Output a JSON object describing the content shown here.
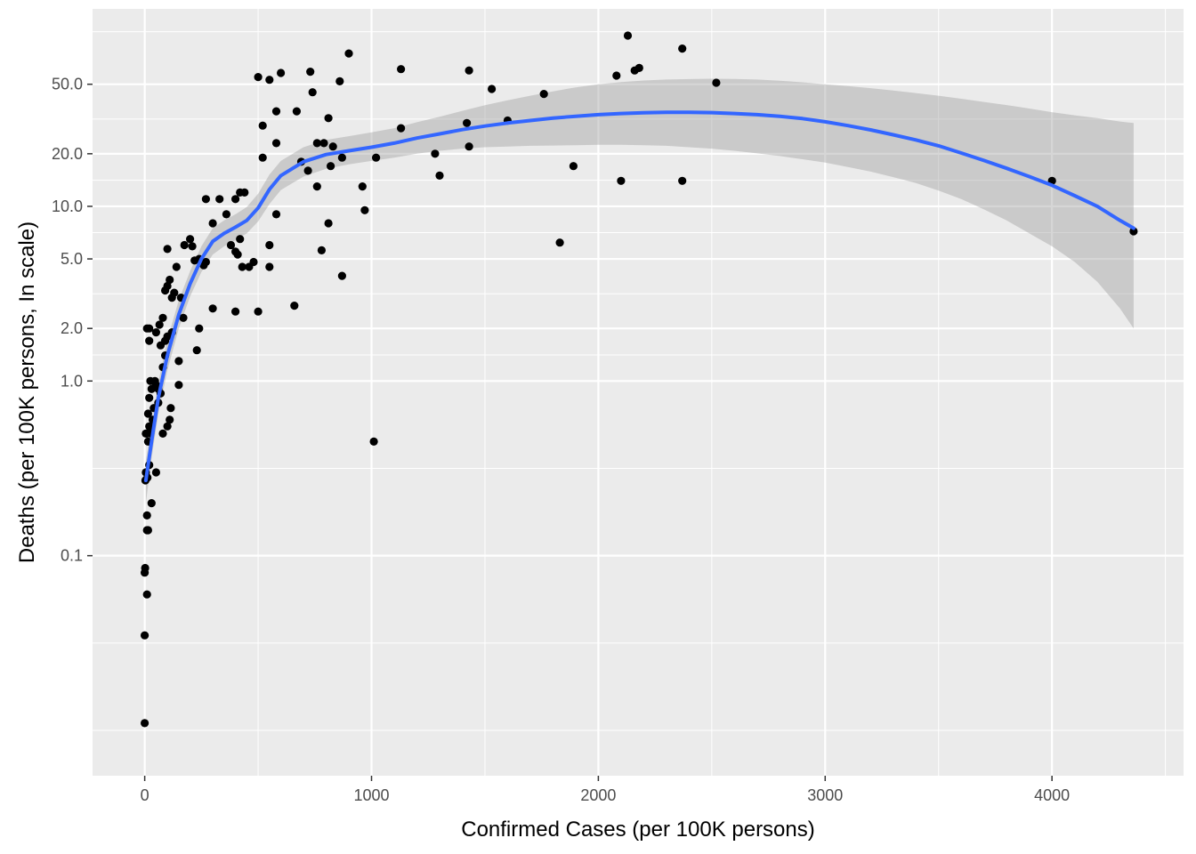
{
  "chart_data": {
    "type": "scatter",
    "title": "",
    "xlabel": "Confirmed Cases (per 100K persons)",
    "ylabel": "Deaths (per 100K persons, In scale)",
    "x_scale": "linear",
    "y_scale": "log",
    "xlim": [
      -230,
      4580
    ],
    "ylim": [
      0.0055,
      135
    ],
    "x_ticks": [
      {
        "value": 0,
        "label": "0"
      },
      {
        "value": 1000,
        "label": "1000"
      },
      {
        "value": 2000,
        "label": "2000"
      },
      {
        "value": 3000,
        "label": "3000"
      },
      {
        "value": 4000,
        "label": "4000"
      }
    ],
    "x_minor_ticks": [
      500,
      1500,
      2500,
      3500,
      4500
    ],
    "y_ticks": [
      {
        "value": 0.1,
        "label": "0.1"
      },
      {
        "value": 1,
        "label": "1.0"
      },
      {
        "value": 2,
        "label": "2.0"
      },
      {
        "value": 5,
        "label": "5.0"
      },
      {
        "value": 10,
        "label": "10.0"
      },
      {
        "value": 20,
        "label": "20.0"
      },
      {
        "value": 50,
        "label": "50.0"
      }
    ],
    "y_minor_ticks": [
      0.01,
      0.0316,
      0.316,
      1.41,
      3.16,
      7.07,
      14.1,
      31.6,
      100
    ],
    "grid": true,
    "legend": "none",
    "colors": {
      "panel": "#ebebeb",
      "grid": "#ffffff",
      "points": "#000000",
      "smooth_line": "#3366ff",
      "ribbon": "#999999"
    },
    "points": [
      [
        0,
        0.011
      ],
      [
        0,
        0.035
      ],
      [
        0,
        0.08
      ],
      [
        2,
        0.085
      ],
      [
        10,
        0.06
      ],
      [
        10,
        0.14
      ],
      [
        15,
        0.14
      ],
      [
        10,
        0.17
      ],
      [
        30,
        0.2
      ],
      [
        3,
        0.27
      ],
      [
        5,
        0.3
      ],
      [
        12,
        0.28
      ],
      [
        50,
        0.3
      ],
      [
        20,
        0.33
      ],
      [
        15,
        0.45
      ],
      [
        5,
        0.5
      ],
      [
        10,
        0.5
      ],
      [
        20,
        0.55
      ],
      [
        25,
        0.5
      ],
      [
        35,
        0.6
      ],
      [
        40,
        0.7
      ],
      [
        20,
        0.8
      ],
      [
        30,
        0.9
      ],
      [
        50,
        0.95
      ],
      [
        60,
        0.9
      ],
      [
        45,
        1.0
      ],
      [
        25,
        1.0
      ],
      [
        15,
        0.65
      ],
      [
        60,
        0.75
      ],
      [
        80,
        0.5
      ],
      [
        100,
        0.55
      ],
      [
        110,
        0.6
      ],
      [
        115,
        0.7
      ],
      [
        150,
        0.95
      ],
      [
        70,
        0.85
      ],
      [
        80,
        1.2
      ],
      [
        90,
        1.4
      ],
      [
        70,
        1.6
      ],
      [
        90,
        1.7
      ],
      [
        100,
        1.8
      ],
      [
        120,
        1.9
      ],
      [
        150,
        1.3
      ],
      [
        80,
        2.3
      ],
      [
        65,
        2.1
      ],
      [
        50,
        1.9
      ],
      [
        20,
        1.7
      ],
      [
        10,
        2.0
      ],
      [
        20,
        2.0
      ],
      [
        90,
        3.3
      ],
      [
        100,
        3.5
      ],
      [
        110,
        3.8
      ],
      [
        120,
        3.0
      ],
      [
        130,
        3.2
      ],
      [
        140,
        4.5
      ],
      [
        160,
        3.0
      ],
      [
        170,
        2.3
      ],
      [
        100,
        5.7
      ],
      [
        175,
        6.0
      ],
      [
        200,
        6.5
      ],
      [
        210,
        5.9
      ],
      [
        220,
        4.9
      ],
      [
        240,
        5.0
      ],
      [
        260,
        4.6
      ],
      [
        270,
        4.8
      ],
      [
        270,
        11.0
      ],
      [
        300,
        8.0
      ],
      [
        330,
        11.0
      ],
      [
        360,
        9.0
      ],
      [
        380,
        6.0
      ],
      [
        400,
        5.5
      ],
      [
        410,
        5.3
      ],
      [
        420,
        6.5
      ],
      [
        400,
        11.0
      ],
      [
        420,
        12.0
      ],
      [
        440,
        12.0
      ],
      [
        430,
        4.5
      ],
      [
        460,
        4.5
      ],
      [
        230,
        1.5
      ],
      [
        240,
        2.0
      ],
      [
        300,
        2.6
      ],
      [
        400,
        2.5
      ],
      [
        500,
        2.5
      ],
      [
        660,
        2.7
      ],
      [
        480,
        4.8
      ],
      [
        550,
        4.5
      ],
      [
        550,
        6.0
      ],
      [
        580,
        9.0
      ],
      [
        780,
        5.6
      ],
      [
        810,
        8.0
      ],
      [
        870,
        4.0
      ],
      [
        970,
        9.5
      ],
      [
        960,
        13.0
      ],
      [
        1010,
        0.45
      ],
      [
        1020,
        19.0
      ],
      [
        760,
        13.0
      ],
      [
        690,
        18.0
      ],
      [
        720,
        16.0
      ],
      [
        760,
        23.0
      ],
      [
        790,
        23.0
      ],
      [
        820,
        17.0
      ],
      [
        830,
        22.0
      ],
      [
        870,
        19.0
      ],
      [
        520,
        19.0
      ],
      [
        520,
        29.0
      ],
      [
        580,
        23.0
      ],
      [
        580,
        35.0
      ],
      [
        670,
        35.0
      ],
      [
        740,
        45.0
      ],
      [
        810,
        32.0
      ],
      [
        500,
        55.0
      ],
      [
        550,
        53.0
      ],
      [
        600,
        58.0
      ],
      [
        730,
        59.0
      ],
      [
        860,
        52.0
      ],
      [
        900,
        75.0
      ],
      [
        1130,
        28.0
      ],
      [
        1130,
        61.0
      ],
      [
        1280,
        20.0
      ],
      [
        1300,
        15.0
      ],
      [
        1420,
        30.0
      ],
      [
        1430,
        22.0
      ],
      [
        1430,
        60.0
      ],
      [
        1530,
        47.0
      ],
      [
        1600,
        31.0
      ],
      [
        1760,
        44.0
      ],
      [
        1830,
        6.2
      ],
      [
        1890,
        17.0
      ],
      [
        2080,
        56.0
      ],
      [
        2100,
        14.0
      ],
      [
        2130,
        95.0
      ],
      [
        2160,
        60.0
      ],
      [
        2180,
        62.0
      ],
      [
        2370,
        14.0
      ],
      [
        2370,
        80.0
      ],
      [
        2520,
        51.0
      ],
      [
        4000,
        14.0
      ],
      [
        4360,
        7.2
      ]
    ],
    "smooth_line": [
      [
        5,
        0.27
      ],
      [
        30,
        0.45
      ],
      [
        60,
        0.8
      ],
      [
        100,
        1.4
      ],
      [
        150,
        2.4
      ],
      [
        200,
        3.6
      ],
      [
        250,
        5.0
      ],
      [
        300,
        6.3
      ],
      [
        350,
        7.0
      ],
      [
        400,
        7.6
      ],
      [
        450,
        8.3
      ],
      [
        500,
        9.8
      ],
      [
        550,
        12.5
      ],
      [
        600,
        15.0
      ],
      [
        700,
        18.0
      ],
      [
        800,
        19.8
      ],
      [
        900,
        20.8
      ],
      [
        1000,
        21.8
      ],
      [
        1100,
        23.0
      ],
      [
        1200,
        24.6
      ],
      [
        1300,
        26.0
      ],
      [
        1400,
        27.5
      ],
      [
        1500,
        28.8
      ],
      [
        1600,
        30.0
      ],
      [
        1700,
        31.0
      ],
      [
        1800,
        32.0
      ],
      [
        1900,
        32.8
      ],
      [
        2000,
        33.5
      ],
      [
        2100,
        34.0
      ],
      [
        2200,
        34.3
      ],
      [
        2300,
        34.5
      ],
      [
        2400,
        34.5
      ],
      [
        2500,
        34.4
      ],
      [
        2600,
        34.0
      ],
      [
        2700,
        33.5
      ],
      [
        2800,
        32.8
      ],
      [
        2900,
        31.8
      ],
      [
        3000,
        30.5
      ],
      [
        3100,
        29.0
      ],
      [
        3200,
        27.4
      ],
      [
        3300,
        25.7
      ],
      [
        3400,
        24.0
      ],
      [
        3500,
        22.2
      ],
      [
        3600,
        20.2
      ],
      [
        3700,
        18.3
      ],
      [
        3800,
        16.5
      ],
      [
        3900,
        14.8
      ],
      [
        4000,
        13.2
      ],
      [
        4100,
        11.5
      ],
      [
        4200,
        10.0
      ],
      [
        4300,
        8.3
      ],
      [
        4360,
        7.5
      ]
    ],
    "ribbon": [
      [
        5,
        0.2,
        0.35
      ],
      [
        30,
        0.36,
        0.55
      ],
      [
        60,
        0.65,
        0.98
      ],
      [
        100,
        1.15,
        1.72
      ],
      [
        150,
        2.0,
        2.9
      ],
      [
        200,
        3.05,
        4.25
      ],
      [
        250,
        4.2,
        5.9
      ],
      [
        300,
        5.3,
        7.5
      ],
      [
        350,
        5.9,
        8.3
      ],
      [
        400,
        6.4,
        9.0
      ],
      [
        450,
        7.0,
        9.9
      ],
      [
        500,
        8.2,
        11.8
      ],
      [
        550,
        10.3,
        15.2
      ],
      [
        600,
        12.4,
        18.2
      ],
      [
        700,
        14.8,
        21.8
      ],
      [
        800,
        16.4,
        24.0
      ],
      [
        900,
        17.4,
        25.2
      ],
      [
        1000,
        18.2,
        26.5
      ],
      [
        1100,
        19.0,
        28.0
      ],
      [
        1200,
        20.0,
        30.3
      ],
      [
        1300,
        20.8,
        32.6
      ],
      [
        1400,
        21.4,
        35.2
      ],
      [
        1500,
        21.8,
        37.9
      ],
      [
        1600,
        22.0,
        40.5
      ],
      [
        1700,
        22.2,
        43.0
      ],
      [
        1800,
        22.3,
        45.5
      ],
      [
        1900,
        22.4,
        48.0
      ],
      [
        2000,
        22.5,
        50.0
      ],
      [
        2100,
        22.5,
        51.5
      ],
      [
        2200,
        22.4,
        52.5
      ],
      [
        2300,
        22.2,
        53.2
      ],
      [
        2400,
        21.8,
        53.5
      ],
      [
        2500,
        21.4,
        53.8
      ],
      [
        2600,
        20.8,
        53.6
      ],
      [
        2700,
        20.1,
        53.2
      ],
      [
        2800,
        19.4,
        52.4
      ],
      [
        2900,
        18.6,
        51.3
      ],
      [
        3000,
        17.8,
        50.0
      ],
      [
        3100,
        16.8,
        48.8
      ],
      [
        3200,
        15.8,
        47.5
      ],
      [
        3300,
        14.7,
        46.0
      ],
      [
        3400,
        13.6,
        44.5
      ],
      [
        3500,
        12.3,
        43.0
      ],
      [
        3600,
        11.0,
        41.3
      ],
      [
        3700,
        9.6,
        39.6
      ],
      [
        3800,
        8.3,
        38.0
      ],
      [
        3900,
        7.0,
        36.3
      ],
      [
        4000,
        5.9,
        34.6
      ],
      [
        4100,
        4.8,
        33.2
      ],
      [
        4200,
        3.7,
        32.0
      ],
      [
        4300,
        2.6,
        30.6
      ],
      [
        4360,
        2.0,
        30.0
      ]
    ]
  }
}
